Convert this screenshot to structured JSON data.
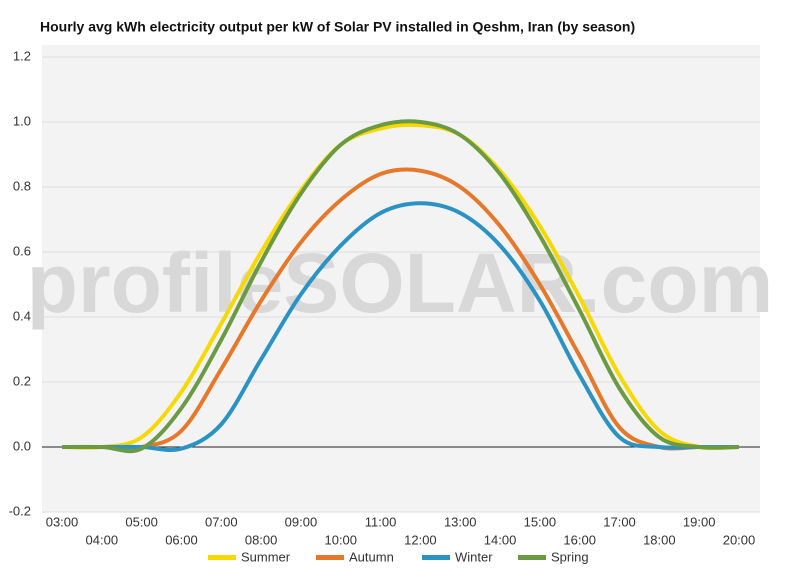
{
  "chart_data": {
    "type": "line",
    "title": "Hourly avg kWh electricity output per kW of Solar PV installed in Qeshm, Iran (by season)",
    "watermark": "profileSOLAR.com",
    "categories": [
      "03:00",
      "04:00",
      "05:00",
      "06:00",
      "07:00",
      "08:00",
      "09:00",
      "10:00",
      "11:00",
      "12:00",
      "13:00",
      "14:00",
      "15:00",
      "16:00",
      "17:00",
      "18:00",
      "19:00",
      "20:00"
    ],
    "series": [
      {
        "name": "Summer",
        "color": "#f7d800",
        "values": [
          0,
          0,
          0.03,
          0.17,
          0.38,
          0.6,
          0.79,
          0.93,
          0.98,
          0.99,
          0.96,
          0.85,
          0.68,
          0.46,
          0.22,
          0.05,
          0,
          0
        ]
      },
      {
        "name": "Autumn",
        "color": "#e5782a",
        "values": [
          0,
          0,
          0,
          0.05,
          0.24,
          0.45,
          0.63,
          0.76,
          0.84,
          0.85,
          0.8,
          0.68,
          0.5,
          0.28,
          0.06,
          0,
          0,
          0
        ]
      },
      {
        "name": "Winter",
        "color": "#2a93c3",
        "values": [
          0,
          0,
          0,
          -0.005,
          0.07,
          0.27,
          0.47,
          0.62,
          0.72,
          0.75,
          0.72,
          0.62,
          0.45,
          0.22,
          0.03,
          0,
          0,
          0
        ]
      },
      {
        "name": "Spring",
        "color": "#6b9a45",
        "values": [
          0,
          0,
          -0.005,
          0.12,
          0.33,
          0.57,
          0.78,
          0.93,
          0.99,
          1.0,
          0.96,
          0.84,
          0.65,
          0.42,
          0.18,
          0.03,
          0,
          0
        ]
      }
    ],
    "ylim": [
      -0.2,
      1.2
    ],
    "yticks": [
      -0.2,
      {
        "value": 0,
        "label": "0.0"
      },
      0.2,
      0.4,
      0.6,
      0.8,
      {
        "value": 1,
        "label": "1.0"
      },
      1.2
    ],
    "grid": true
  }
}
